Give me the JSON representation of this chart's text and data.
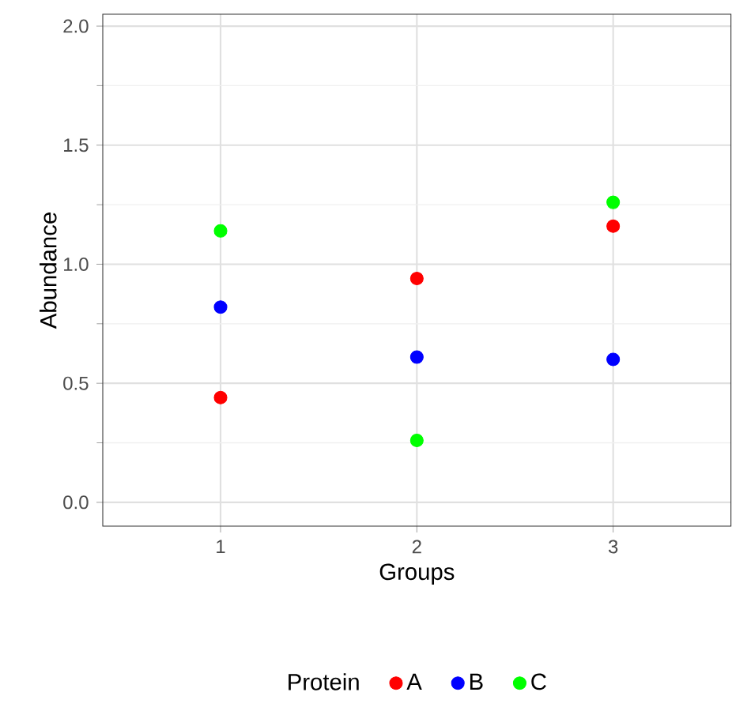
{
  "chart_data": {
    "type": "scatter",
    "xlabel": "Groups",
    "ylabel": "Abundance",
    "legend_title": "Protein",
    "categories": [
      "1",
      "2",
      "3"
    ],
    "series": [
      {
        "name": "A",
        "color": "#ff0000",
        "values": [
          0.44,
          0.94,
          1.16
        ]
      },
      {
        "name": "B",
        "color": "#0000ff",
        "values": [
          0.82,
          0.61,
          0.6
        ]
      },
      {
        "name": "C",
        "color": "#00ff00",
        "values": [
          1.14,
          0.26,
          1.26
        ]
      }
    ],
    "ylim": [
      -0.1,
      2.05
    ],
    "yticks": [
      {
        "value": 0,
        "label": "0.0"
      },
      {
        "value": 0.5,
        "label": "0.5"
      },
      {
        "value": 1,
        "label": "1.0"
      },
      {
        "value": 1.5,
        "label": "1.5"
      },
      {
        "value": 2,
        "label": "2.0"
      }
    ],
    "grid": true,
    "legend": "bottom",
    "marker": "circle"
  }
}
